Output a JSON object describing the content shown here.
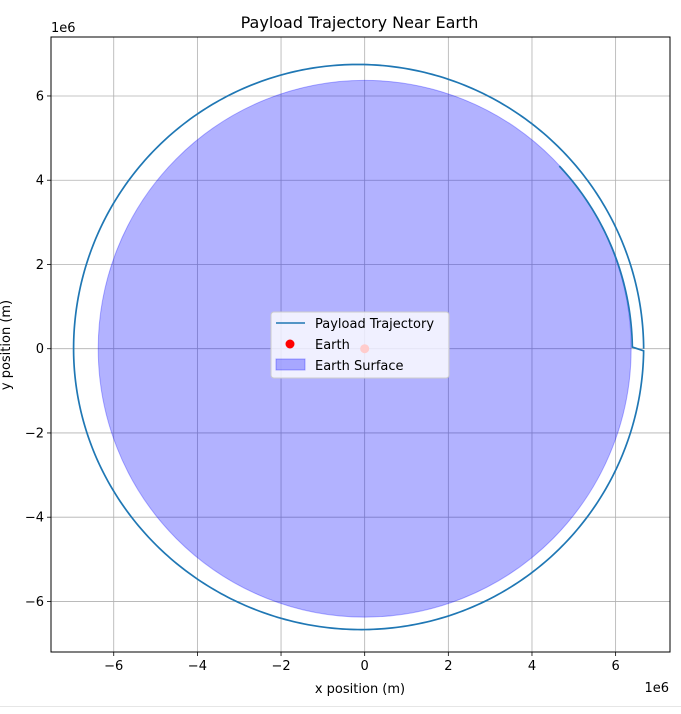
{
  "chart_data": {
    "type": "line",
    "title": "Payload Trajectory Near Earth",
    "xlabel": "x position (m)",
    "ylabel": "y position (m)",
    "x_offset_text": "1e6",
    "y_offset_text": "1e6",
    "xlim": [
      -7.5,
      7.3
    ],
    "ylim": [
      -7.2,
      7.4
    ],
    "scale_multiplier": 1000000,
    "xticks": [
      -6,
      -4,
      -2,
      0,
      2,
      4,
      6
    ],
    "yticks": [
      -6,
      -4,
      -2,
      0,
      2,
      4,
      6
    ],
    "xtick_labels": [
      "−6",
      "−4",
      "−2",
      "0",
      "2",
      "4",
      "6"
    ],
    "ytick_labels": [
      "−6",
      "−4",
      "−2",
      "0",
      "2",
      "4",
      "6"
    ],
    "grid": true,
    "legend_position": "center",
    "series": [
      {
        "name": "Payload Trajectory",
        "kind": "line",
        "color": "#1f77b4",
        "description_points": {
          "start": [
            6.67,
            0.0
          ],
          "top": [
            -0.1,
            6.78
          ],
          "left": [
            -6.78,
            0.0
          ],
          "bottom": [
            -0.2,
            -6.57
          ],
          "end": [
            4.65,
            4.32
          ]
        }
      },
      {
        "name": "Earth",
        "kind": "point",
        "color": "#ff0000",
        "x": 0,
        "y": 0
      },
      {
        "name": "Earth Surface",
        "kind": "filled_circle",
        "color": "#0000ff",
        "alpha": 0.3,
        "center": [
          0,
          0
        ],
        "radius": 6.371
      }
    ]
  }
}
